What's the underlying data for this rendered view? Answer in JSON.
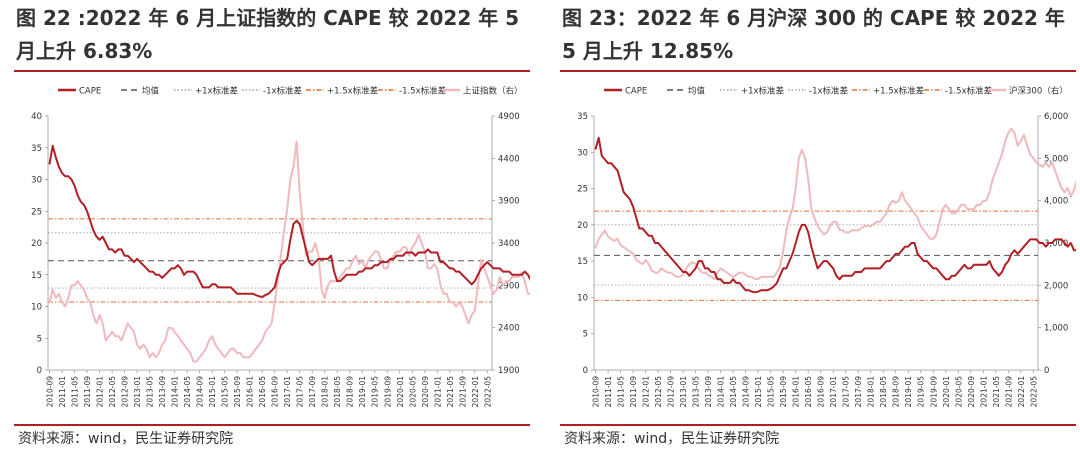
{
  "panels": {
    "left": {
      "title": "图 22 :2022 年 6 月上证指数的 CAPE 较 2022 年 5 月上升 6.83%",
      "source": "资料来源：wind，民生证券研究院"
    },
    "right": {
      "title": "图 23：2022 年 6 月沪深 300 的 CAPE 较 2022 年 5 月上升 12.85%",
      "source": "资料来源：wind，民生证券研究院"
    }
  },
  "colors": {
    "cape": "#b01f24",
    "index": "#f0b9bd",
    "mean": "#555555",
    "sd1": "#a0a0a0",
    "sd15": "#e0703a",
    "rule": "#b01f24"
  },
  "chart_data": [
    {
      "type": "line",
      "x_start": "2010-09",
      "xlabels": [
        "2010-09",
        "2011-01",
        "2011-05",
        "2011-09",
        "2012-01",
        "2012-05",
        "2012-09",
        "2013-01",
        "2013-05",
        "2013-09",
        "2014-01",
        "2014-05",
        "2014-09",
        "2015-01",
        "2015-05",
        "2015-09",
        "2016-01",
        "2016-05",
        "2016-09",
        "2017-01",
        "2017-05",
        "2017-09",
        "2018-01",
        "2018-05",
        "2018-09",
        "2019-01",
        "2019-05",
        "2019-09",
        "2020-01",
        "2020-05",
        "2020-09",
        "2021-01",
        "2021-05",
        "2021-09",
        "2022-01",
        "2022-05"
      ],
      "ylim": [
        0,
        40
      ],
      "yticks": [
        0,
        5,
        10,
        15,
        20,
        25,
        30,
        35,
        40
      ],
      "ylim_right": [
        1900,
        4900
      ],
      "yticks_right": [
        1900,
        2400,
        2900,
        3400,
        3900,
        4400,
        4900
      ],
      "legend": [
        "CAPE",
        "均值",
        "+1x标准差",
        "-1x标准差",
        "+1.5x标准差",
        "-1.5x标准差",
        "上证指数（右）"
      ],
      "series": [
        {
          "name": "CAPE",
          "axis": "left",
          "values": [
            32.5,
            35.3,
            33.5,
            32,
            31,
            30.5,
            30.5,
            30,
            29,
            27.5,
            26.5,
            26,
            25,
            23.5,
            22,
            21,
            20.5,
            21,
            20,
            19,
            19,
            18.5,
            19,
            19,
            18,
            18,
            17.5,
            17,
            17.5,
            17,
            16.5,
            16,
            15.5,
            15.5,
            15,
            15,
            14.5,
            15,
            15.5,
            16,
            16,
            16.5,
            16,
            15,
            15.5,
            15.5,
            15.5,
            15,
            14,
            13,
            13,
            13,
            13.5,
            13.5,
            13,
            13,
            13,
            13,
            13,
            12.5,
            12,
            12,
            12,
            12,
            12,
            12,
            11.8,
            11.6,
            11.5,
            11.8,
            12,
            12.5,
            13,
            15,
            16.5,
            17,
            17.5,
            20.5,
            23,
            23.5,
            23,
            21,
            19,
            17,
            16.5,
            17,
            17.5,
            17.5,
            17.5,
            17.5,
            18,
            15.5,
            14,
            14,
            14.5,
            15,
            15,
            15,
            15,
            15.5,
            15.5,
            16,
            16,
            16,
            16.5,
            16.5,
            17,
            17,
            17,
            17.5,
            17.5,
            18,
            18,
            18,
            18.5,
            18.5,
            18.5,
            18,
            18.5,
            18.5,
            18.5,
            19,
            18.5,
            18.5,
            18.5,
            17,
            17,
            16.5,
            16,
            16,
            15.5,
            15.5,
            15,
            14.5,
            14,
            13.5,
            14,
            15,
            16,
            16.5,
            17,
            16.5,
            16,
            16,
            16,
            15.5,
            15.5,
            15.5,
            15,
            15,
            15,
            15,
            15.5,
            15,
            14,
            14,
            15,
            15.5,
            15.5,
            16.5,
            17.5,
            17,
            17.5,
            17.5,
            17.5,
            17.5,
            17.5,
            17.5,
            17.5,
            17.5,
            17.5,
            18,
            17.5,
            17.5,
            17.5,
            17.5,
            17.5,
            18,
            17.5,
            17.5,
            17.5,
            17.5,
            17.5,
            16.5,
            16,
            15,
            15.5,
            16
          ]
        },
        {
          "name": "上证指数（右）",
          "axis": "right",
          "values": [
            2700,
            2850,
            2750,
            2800,
            2700,
            2650,
            2750,
            2900,
            2900,
            2950,
            2900,
            2850,
            2750,
            2700,
            2550,
            2450,
            2550,
            2450,
            2250,
            2300,
            2350,
            2300,
            2300,
            2250,
            2350,
            2450,
            2400,
            2350,
            2200,
            2150,
            2200,
            2150,
            2050,
            2100,
            2050,
            2100,
            2200,
            2250,
            2400,
            2400,
            2350,
            2300,
            2250,
            2200,
            2150,
            2100,
            2000,
            2000,
            2050,
            2100,
            2150,
            2250,
            2300,
            2200,
            2150,
            2100,
            2050,
            2100,
            2150,
            2150,
            2100,
            2100,
            2050,
            2050,
            2050,
            2100,
            2150,
            2200,
            2250,
            2350,
            2400,
            2450,
            2700,
            2950,
            3250,
            3550,
            3800,
            4150,
            4300,
            4600,
            4000,
            3600,
            3250,
            3300,
            3300,
            3400,
            3250,
            2850,
            2750,
            2900,
            2950,
            2950,
            2950,
            3000,
            3050,
            3100,
            3100,
            3200,
            3250,
            3150,
            3200,
            3100,
            3200,
            3250,
            3300,
            3300,
            3200,
            3100,
            3100,
            3200,
            3250,
            3300,
            3300,
            3350,
            3350,
            3250,
            3350,
            3400,
            3500,
            3400,
            3300,
            3100,
            3100,
            3150,
            3100,
            2900,
            2800,
            2800,
            2700,
            2700,
            2650,
            2700,
            2650,
            2550,
            2450,
            2550,
            2600,
            2900,
            3200,
            3100,
            3000,
            2900,
            2800,
            2850,
            3000,
            2900,
            2950,
            2950,
            3000,
            3000,
            3000,
            3050,
            2950,
            2800,
            2800,
            2850,
            2900,
            2950,
            3000,
            3100,
            3200,
            3300,
            3350,
            3450,
            3400,
            3400,
            3400,
            3450,
            3500,
            3550,
            3600,
            3550,
            3450,
            3500,
            3550,
            3500,
            3550,
            3600,
            3500,
            3550,
            3600,
            3550,
            3650,
            3600,
            3600,
            3400,
            3300,
            3100,
            3150,
            3150,
            3400
          ]
        },
        {
          "name": "均值",
          "axis": "left",
          "constant": 17.2
        },
        {
          "name": "+1x标准差",
          "axis": "left",
          "constant": 21.6
        },
        {
          "name": "-1x标准差",
          "axis": "left",
          "constant": 12.9
        },
        {
          "name": "+1.5x标准差",
          "axis": "left",
          "constant": 23.8
        },
        {
          "name": "-1.5x标准差",
          "axis": "left",
          "constant": 10.7
        }
      ]
    },
    {
      "type": "line",
      "x_start": "2010-09",
      "xlabels": [
        "2010-09",
        "2011-01",
        "2011-05",
        "2011-09",
        "2012-01",
        "2012-05",
        "2012-09",
        "2013-01",
        "2013-05",
        "2013-09",
        "2014-01",
        "2014-05",
        "2014-09",
        "2015-01",
        "2015-05",
        "2015-09",
        "2016-01",
        "2016-05",
        "2016-09",
        "2017-01",
        "2017-05",
        "2017-09",
        "2018-01",
        "2018-05",
        "2018-09",
        "2019-01",
        "2019-05",
        "2019-09",
        "2020-01",
        "2020-05",
        "2020-09",
        "2021-01",
        "2021-05",
        "2021-09",
        "2022-01",
        "2022-05"
      ],
      "ylim": [
        0,
        35
      ],
      "yticks": [
        0,
        5,
        10,
        15,
        20,
        25,
        30,
        35
      ],
      "ylim_right": [
        0,
        6000
      ],
      "yticks_right": [
        "0",
        "1,000",
        "2,000",
        "3,000",
        "4,000",
        "5,000",
        "6,000"
      ],
      "legend": [
        "CAPE",
        "均值",
        "+1x标准差",
        "-1x标准差",
        "+1.5x标准差",
        "-1.5x标准差",
        "沪深300（右）"
      ],
      "series": [
        {
          "name": "CAPE",
          "axis": "left",
          "values": [
            30.5,
            32,
            29.5,
            29,
            28.5,
            28.5,
            28,
            27.5,
            26,
            24.5,
            24,
            23.5,
            22.5,
            21,
            19.5,
            19.5,
            19,
            18.5,
            18.5,
            17.5,
            17.5,
            17,
            16.5,
            16,
            15.5,
            15,
            14.5,
            14,
            13.5,
            13.5,
            13,
            13.5,
            14,
            15,
            15,
            14,
            14,
            13.5,
            13.5,
            12.5,
            12.5,
            12,
            12,
            12,
            12.5,
            12,
            12,
            11.5,
            11,
            11,
            10.8,
            10.7,
            10.8,
            11,
            11,
            11,
            11.2,
            11.5,
            12,
            13,
            14,
            14,
            15,
            16,
            17.5,
            19,
            20,
            20,
            19,
            17,
            15.5,
            14,
            14.5,
            15,
            15,
            14.5,
            14,
            13,
            12.5,
            13,
            13,
            13,
            13,
            13.5,
            13.5,
            13.5,
            14,
            14,
            14,
            14,
            14,
            14,
            14.5,
            15,
            15,
            15.5,
            16,
            16,
            16.5,
            17,
            17,
            17.5,
            17.5,
            16,
            15.5,
            15,
            15,
            14.5,
            14,
            14,
            13.5,
            13,
            12.5,
            12.5,
            13,
            13,
            13.5,
            14,
            14.5,
            14,
            14,
            14.5,
            14.5,
            14.5,
            14.5,
            14.5,
            15,
            14,
            13.5,
            13,
            13.5,
            14.5,
            15,
            16,
            16.5,
            16,
            16.5,
            17,
            17.5,
            18,
            18,
            18,
            17.5,
            17.5,
            17,
            17.5,
            17.5,
            18,
            18,
            18,
            17.5,
            17,
            17.5,
            16.5,
            16.5,
            16,
            17,
            17.5,
            17,
            16.5,
            17,
            16.5,
            16,
            15,
            14.5,
            14.5,
            15,
            16.5
          ]
        },
        {
          "name": "沪深300（右）",
          "axis": "right",
          "values": [
            2900,
            3100,
            3200,
            3300,
            3150,
            3100,
            3050,
            3100,
            2950,
            2900,
            2850,
            2800,
            2750,
            2600,
            2550,
            2500,
            2600,
            2500,
            2350,
            2300,
            2300,
            2400,
            2350,
            2300,
            2300,
            2250,
            2200,
            2200,
            2250,
            2400,
            2500,
            2550,
            2500,
            2400,
            2300,
            2300,
            2250,
            2200,
            2150,
            2300,
            2400,
            2350,
            2300,
            2250,
            2200,
            2250,
            2300,
            2300,
            2250,
            2200,
            2200,
            2150,
            2150,
            2200,
            2200,
            2200,
            2200,
            2200,
            2300,
            2450,
            2800,
            3300,
            3600,
            3800,
            4300,
            5000,
            5200,
            5000,
            4500,
            3800,
            3600,
            3400,
            3300,
            3200,
            3250,
            3400,
            3500,
            3500,
            3300,
            3300,
            3250,
            3250,
            3300,
            3300,
            3300,
            3350,
            3400,
            3400,
            3400,
            3450,
            3500,
            3500,
            3600,
            3700,
            3900,
            4000,
            3950,
            4000,
            4200,
            4000,
            3900,
            3800,
            3700,
            3600,
            3400,
            3300,
            3200,
            3100,
            3100,
            3200,
            3500,
            3800,
            3900,
            3800,
            3700,
            3700,
            3800,
            3900,
            3900,
            3800,
            3800,
            3800,
            3900,
            3900,
            4000,
            4000,
            4200,
            4500,
            4700,
            4900,
            5100,
            5400,
            5600,
            5700,
            5600,
            5300,
            5400,
            5550,
            5300,
            5100,
            5000,
            4900,
            4850,
            4800,
            4900,
            4800,
            4900,
            4700,
            4500,
            4300,
            4200,
            4300,
            4100,
            4250,
            4500,
            4550
          ]
        },
        {
          "name": "均值",
          "axis": "left",
          "constant": 15.8
        },
        {
          "name": "+1x标准差",
          "axis": "left",
          "constant": 20.0
        },
        {
          "name": "-1x标准差",
          "axis": "left",
          "constant": 11.7
        },
        {
          "name": "+1.5x标准差",
          "axis": "left",
          "constant": 21.9
        },
        {
          "name": "-1.5x标准差",
          "axis": "left",
          "constant": 9.6
        }
      ]
    }
  ]
}
